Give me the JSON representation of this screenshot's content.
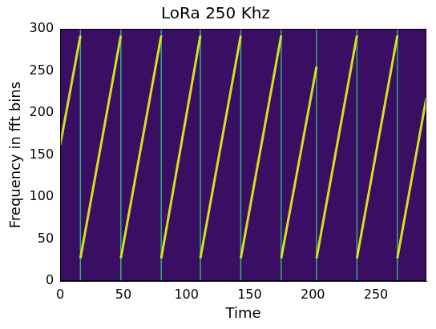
{
  "chart_data": {
    "type": "line",
    "title": "LoRa 250 Khz",
    "x_label": "Time",
    "y_label": "Frequency in fft bins",
    "xlim": [
      0,
      290
    ],
    "xticks": [
      0,
      50,
      100,
      150,
      200,
      250
    ],
    "ylim": [
      0,
      300
    ],
    "yticks": [
      0,
      50,
      100,
      150,
      200,
      250,
      300
    ],
    "grid": false,
    "series": [
      {
        "color": "#d4e21a",
        "x": [
          0,
          16,
          16,
          16,
          48,
          48,
          48,
          80,
          80,
          80,
          111,
          111,
          111,
          143,
          143,
          143,
          175,
          175,
          175,
          203,
          203,
          203,
          235,
          235,
          235,
          267,
          267,
          267,
          290
        ],
        "values": [
          162,
          292,
          null,
          27,
          292,
          null,
          27,
          292,
          null,
          27,
          292,
          null,
          27,
          292,
          null,
          27,
          292,
          null,
          27,
          255,
          null,
          27,
          292,
          null,
          27,
          292,
          null,
          27,
          218
        ]
      },
      {
        "color": "#2db27d",
        "x": [
          16,
          16,
          16,
          48,
          48,
          48,
          80,
          80,
          80,
          111,
          111,
          111,
          143,
          143,
          143,
          175,
          175,
          175,
          203,
          203,
          203,
          235,
          235,
          235,
          267,
          267
        ],
        "values": [
          0,
          300,
          null,
          0,
          300,
          null,
          0,
          300,
          null,
          0,
          300,
          null,
          0,
          300,
          null,
          0,
          300,
          null,
          0,
          300,
          null,
          0,
          300,
          null,
          0,
          300
        ]
      }
    ]
  }
}
